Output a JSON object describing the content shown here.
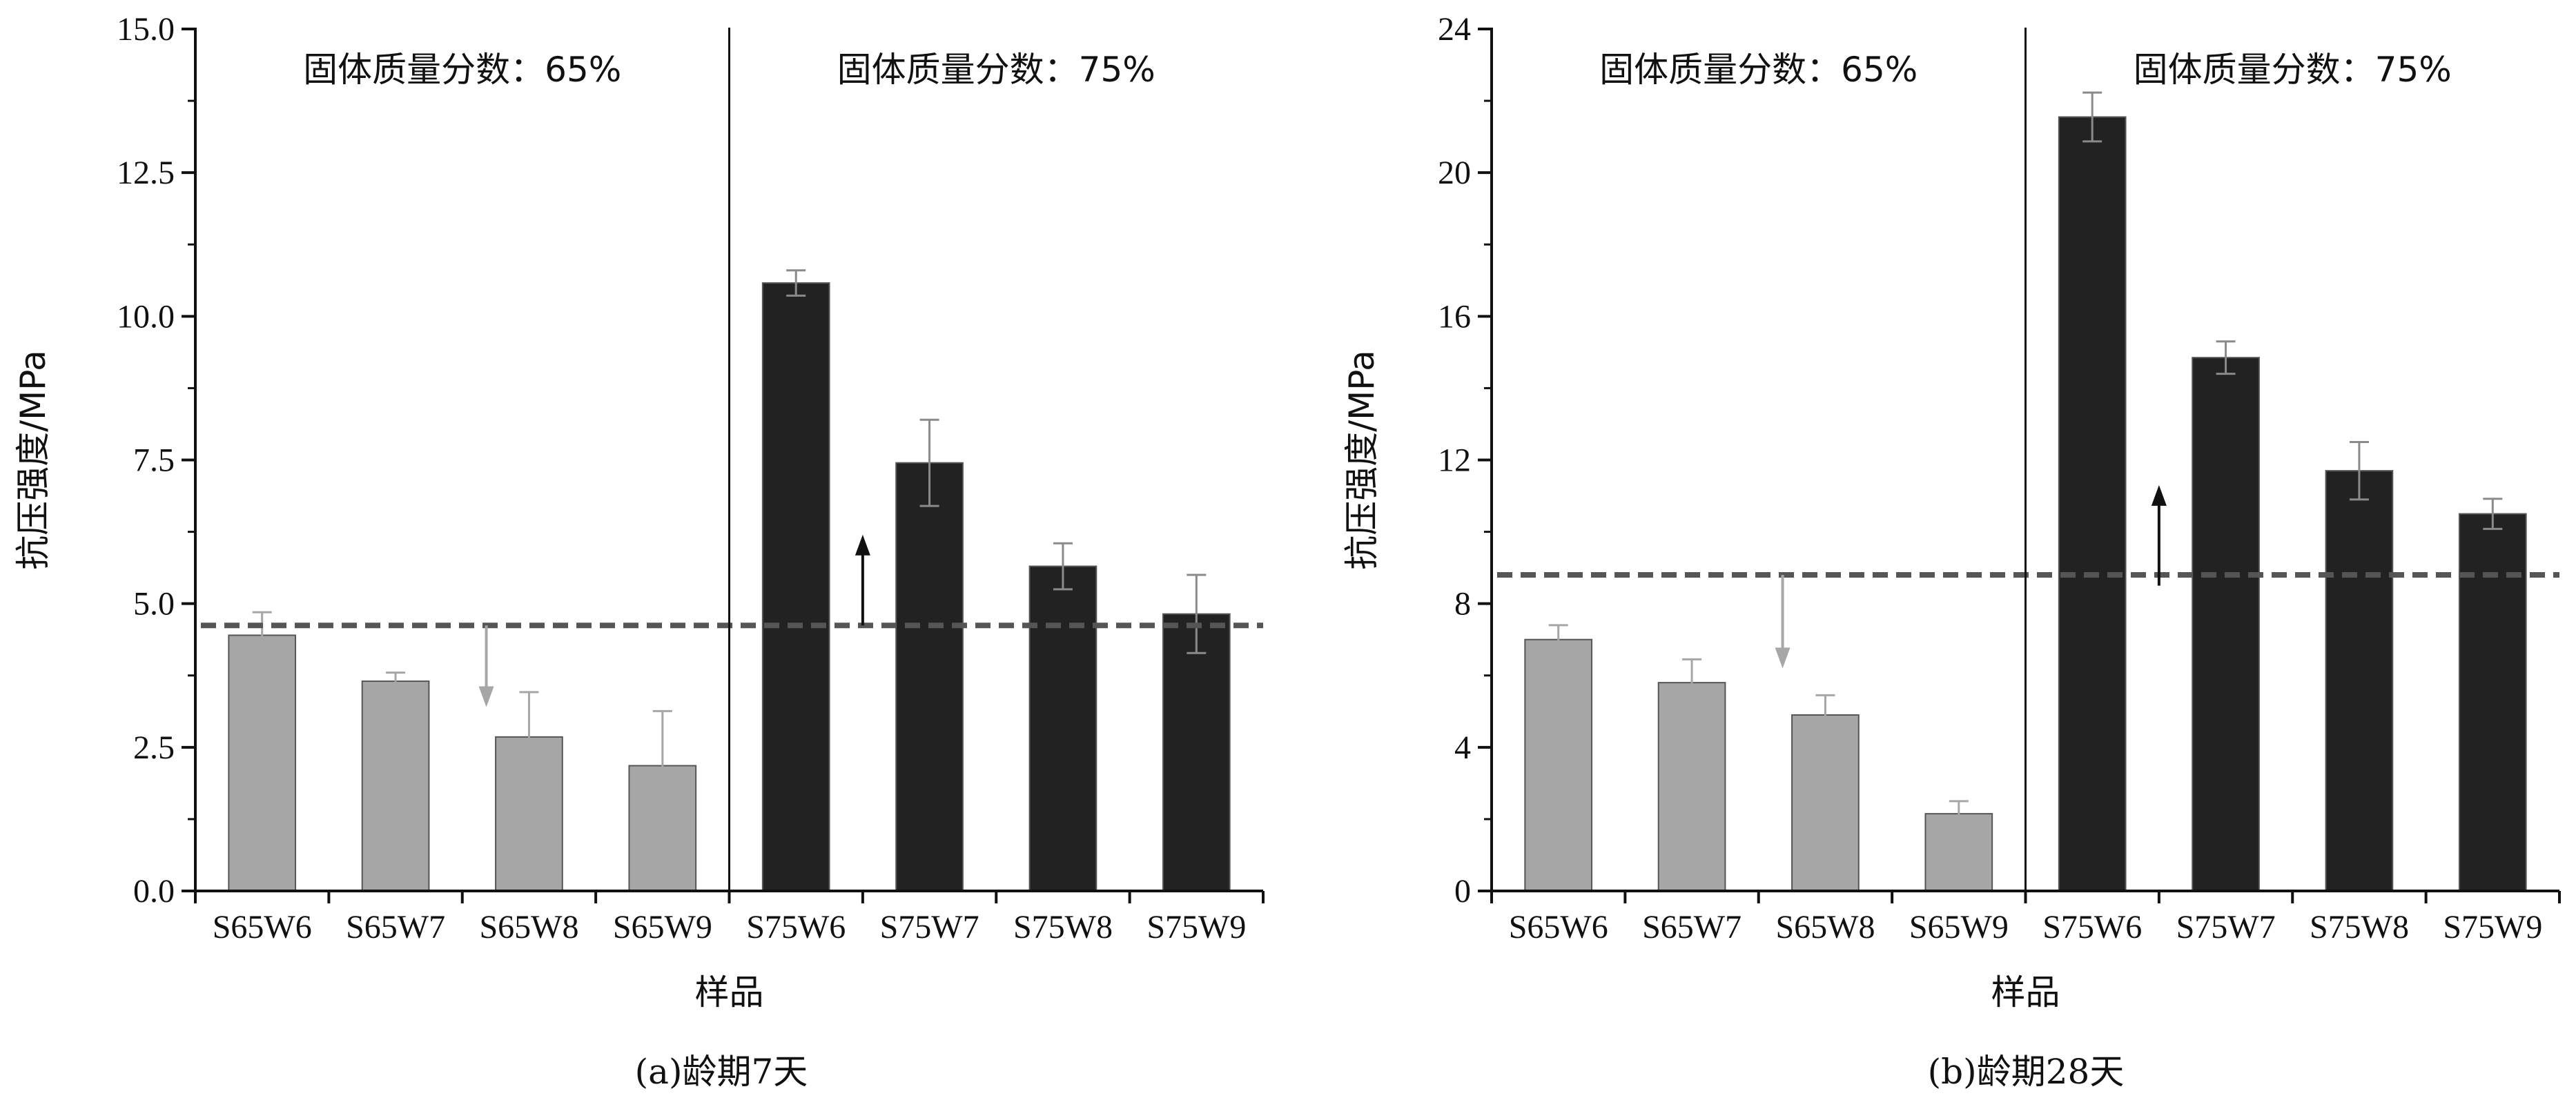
{
  "colors": {
    "bar_w65": "#a6a6a6",
    "bar_w75": "#222222",
    "error_w65": "#a6a6a6",
    "error_w75": "#8a8a8a",
    "reference_line": "#555555",
    "arrow_w65": "#a6a6a6",
    "arrow_w75": "#111111",
    "axis": "#111111"
  },
  "chart_data": [
    {
      "type": "bar",
      "caption": "(a)龄期7天",
      "xlabel": "样品",
      "ylabel": "抗压强度/MPa",
      "ylim": [
        0,
        15
      ],
      "yticks": [
        "0.0",
        "2.5",
        "5.0",
        "7.5",
        "10.0",
        "12.5",
        "15.0"
      ],
      "categories": [
        "S65W6",
        "S65W7",
        "S65W8",
        "S65W9",
        "S75W6",
        "S75W7",
        "S75W8",
        "S75W9"
      ],
      "values": [
        4.45,
        3.65,
        2.68,
        2.18,
        10.58,
        7.45,
        5.65,
        4.82
      ],
      "errors": [
        0.4,
        0.15,
        0.78,
        0.95,
        0.22,
        0.75,
        0.4,
        0.68
      ],
      "groups": [
        {
          "label": "固体质量分数：65%",
          "from": 0,
          "to": 3
        },
        {
          "label": "固体质量分数：75%",
          "from": 4,
          "to": 7
        }
      ],
      "reference_value": 4.62,
      "arrows": [
        {
          "group": 0,
          "direction": "down",
          "from": 4.62,
          "to": 3.2
        },
        {
          "group": 1,
          "direction": "up",
          "from": 4.62,
          "to": 6.2
        }
      ]
    },
    {
      "type": "bar",
      "caption": "(b)龄期28天",
      "xlabel": "样品",
      "ylabel": "抗压强度/MPa",
      "ylim": [
        0,
        24
      ],
      "yticks": [
        "0",
        "4",
        "8",
        "12",
        "16",
        "20",
        "24"
      ],
      "categories": [
        "S65W6",
        "S65W7",
        "S65W8",
        "S65W9",
        "S75W6",
        "S75W7",
        "S75W8",
        "S75W9"
      ],
      "values": [
        7.0,
        5.8,
        4.9,
        2.15,
        21.55,
        14.85,
        11.7,
        10.5
      ],
      "errors": [
        0.4,
        0.65,
        0.55,
        0.35,
        0.68,
        0.45,
        0.8,
        0.42
      ],
      "groups": [
        {
          "label": "固体质量分数：65%",
          "from": 0,
          "to": 3
        },
        {
          "label": "固体质量分数：75%",
          "from": 4,
          "to": 7
        }
      ],
      "reference_value": 8.8,
      "arrows": [
        {
          "group": 0,
          "direction": "down",
          "from": 8.8,
          "to": 6.2
        },
        {
          "group": 1,
          "direction": "up",
          "from": 8.5,
          "to": 11.3
        }
      ]
    }
  ]
}
